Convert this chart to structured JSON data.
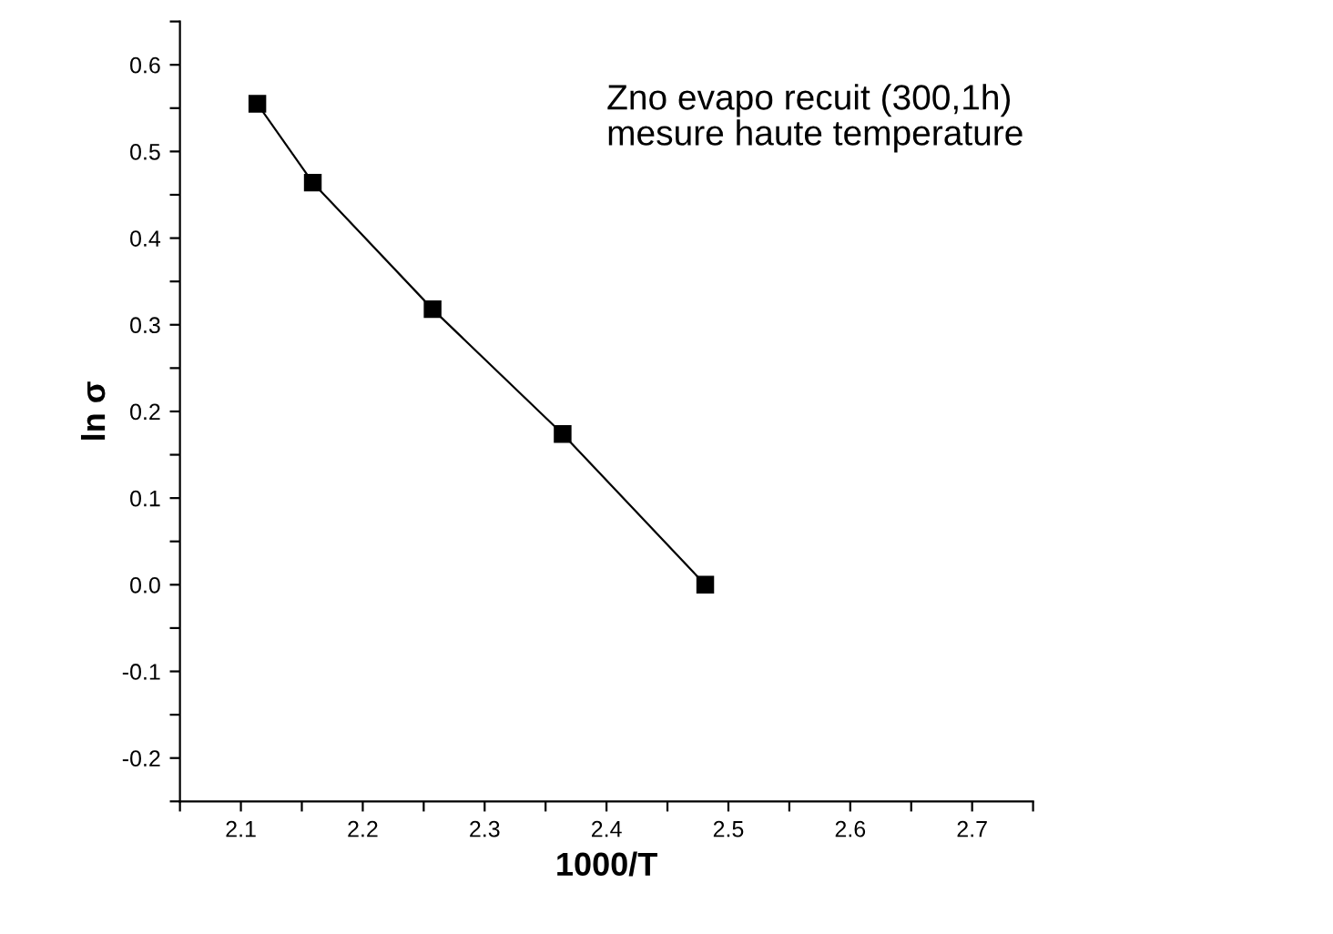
{
  "chart_data": {
    "type": "line",
    "xlabel": "1000/T",
    "ylabel": "ln σ",
    "annotations": [
      "Zno evapo recuit (300,1h)\nmesure haute temperature"
    ],
    "x": [
      2.1135,
      2.159,
      2.2573,
      2.364,
      2.481
    ],
    "series": [
      {
        "color": "#000000",
        "values": [
          0.555,
          0.464,
          0.318,
          0.174,
          0.0
        ]
      }
    ],
    "marker": "square",
    "line_style": "solid",
    "grid": false,
    "legend": false,
    "xlim": [
      2.05,
      2.75
    ],
    "ylim": [
      -0.25,
      0.65
    ],
    "xticks": [
      {
        "value": 2.05,
        "label": null
      },
      2.1,
      {
        "value": 2.15,
        "label": null
      },
      2.2,
      {
        "value": 2.25,
        "label": null
      },
      2.3,
      {
        "value": 2.35,
        "label": null
      },
      2.4,
      {
        "value": 2.45,
        "label": null
      },
      2.5,
      {
        "value": 2.55,
        "label": null
      },
      2.6,
      {
        "value": 2.65,
        "label": null
      },
      2.7,
      {
        "value": 2.75,
        "label": null
      }
    ],
    "yticks": [
      {
        "value": -0.25,
        "label": null
      },
      -0.2,
      {
        "value": -0.15,
        "label": null
      },
      -0.1,
      {
        "value": -0.05,
        "label": null
      },
      {
        "value": 0.0,
        "label": "0.0"
      },
      {
        "value": 0.05,
        "label": null
      },
      0.1,
      {
        "value": 0.15,
        "label": null
      },
      0.2,
      {
        "value": 0.25,
        "label": null
      },
      0.3,
      {
        "value": 0.35,
        "label": null
      },
      0.4,
      {
        "value": 0.45,
        "label": null
      },
      0.5,
      {
        "value": 0.55,
        "label": null
      },
      0.6,
      {
        "value": 0.65,
        "label": null
      }
    ]
  }
}
